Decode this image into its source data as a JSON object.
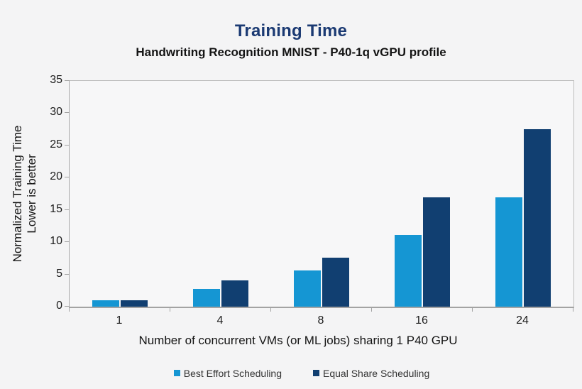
{
  "chart_data": {
    "type": "bar",
    "title": "Training Time",
    "subtitle": "Handwriting Recognition MNIST - P40-1q vGPU profile",
    "categories": [
      "1",
      "4",
      "8",
      "16",
      "24"
    ],
    "series": [
      {
        "name": "Best Effort Scheduling",
        "color": "#1596d3",
        "values": [
          1,
          2.7,
          5.6,
          11.1,
          17
        ]
      },
      {
        "name": "Equal Share Scheduling",
        "color": "#113f71",
        "values": [
          1,
          4.1,
          7.6,
          17,
          27.5
        ]
      }
    ],
    "xlabel": "Number of concurrent VMs (or ML jobs) sharing 1 P40 GPU",
    "ylabel_line1": "Normalized Training Time",
    "ylabel_line2": "Lower is better",
    "ylim": [
      0,
      35
    ],
    "yticks": [
      0,
      5,
      10,
      15,
      20,
      25,
      30,
      35
    ],
    "grid": false,
    "legend_position": "bottom",
    "colors": {
      "title": "#1b3a73",
      "axis_line": "#a3a3a3",
      "text": "#141414",
      "background": "#f4f4f5"
    }
  }
}
